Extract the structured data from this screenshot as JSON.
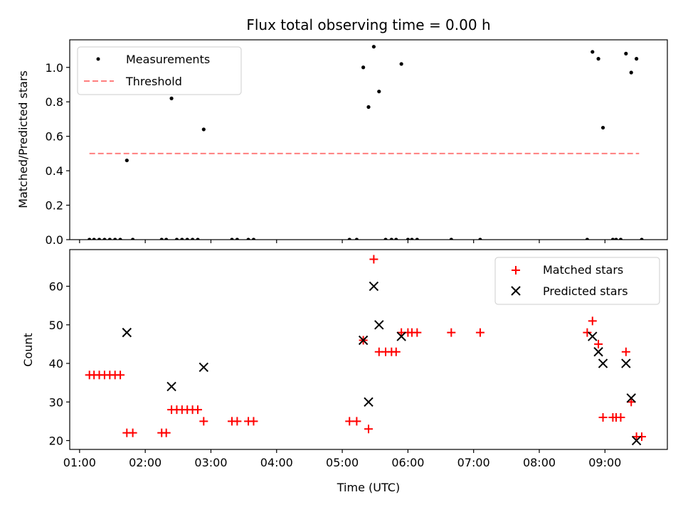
{
  "chart_data": [
    {
      "type": "scatter",
      "title": "Flux total observing time = 0.00 h",
      "xlabel": "",
      "ylabel": "Matched/Predicted stars",
      "xlim": [
        0.85,
        9.95
      ],
      "ylim": [
        0,
        1.16
      ],
      "yticks": [
        0.0,
        0.2,
        0.4,
        0.6,
        0.8,
        1.0
      ],
      "ytick_labels": [
        "0.0",
        "0.2",
        "0.4",
        "0.6",
        "0.8",
        "1.0"
      ],
      "xticks": [
        1,
        2,
        3,
        4,
        5,
        6,
        7,
        8,
        9
      ],
      "grid": false,
      "legend_position": "top-left",
      "series": [
        {
          "name": "Measurements",
          "marker": "dot",
          "color": "#000000",
          "x": [
            1.15,
            1.22,
            1.3,
            1.38,
            1.46,
            1.54,
            1.62,
            1.72,
            1.81,
            2.25,
            2.32,
            2.4,
            2.48,
            2.56,
            2.64,
            2.72,
            2.8,
            2.89,
            3.32,
            3.4,
            3.57,
            3.65,
            5.11,
            5.22,
            5.32,
            5.4,
            5.48,
            5.56,
            5.66,
            5.75,
            5.82,
            5.9,
            6.0,
            6.06,
            6.14,
            6.66,
            7.1,
            8.73,
            8.81,
            8.9,
            8.97,
            9.12,
            9.17,
            9.24,
            9.32,
            9.4,
            9.48,
            9.56
          ],
          "y": [
            0,
            0,
            0,
            0,
            0,
            0,
            0,
            0.46,
            0,
            0,
            0,
            0.82,
            0,
            0,
            0,
            0,
            0,
            0.64,
            0,
            0,
            0,
            0,
            0,
            0,
            1.0,
            0.77,
            1.12,
            0.86,
            0,
            0,
            0,
            1.02,
            0,
            0,
            0,
            0,
            0,
            0,
            1.09,
            1.05,
            0.65,
            0,
            0,
            0,
            1.08,
            0.97,
            1.05,
            0
          ]
        },
        {
          "name": "Threshold",
          "marker": "dashed-line",
          "color": "#ff7f7f",
          "x": [
            1.15,
            9.52
          ],
          "y": [
            0.5,
            0.5
          ]
        }
      ]
    },
    {
      "type": "scatter",
      "title": "",
      "xlabel": "Time (UTC)",
      "ylabel": "Count",
      "xlim": [
        0.85,
        9.95
      ],
      "ylim": [
        17.7,
        69.5
      ],
      "yticks": [
        20,
        30,
        40,
        50,
        60
      ],
      "ytick_labels": [
        "20",
        "30",
        "40",
        "50",
        "60"
      ],
      "xticks": [
        1,
        2,
        3,
        4,
        5,
        6,
        7,
        8,
        9
      ],
      "xtick_labels": [
        "01:00",
        "02:00",
        "03:00",
        "04:00",
        "05:00",
        "06:00",
        "07:00",
        "08:00",
        "09:00"
      ],
      "grid": false,
      "legend_position": "top-right",
      "series": [
        {
          "name": "Matched stars",
          "marker": "plus",
          "color": "#ff0000",
          "x": [
            1.15,
            1.22,
            1.3,
            1.38,
            1.46,
            1.54,
            1.62,
            1.72,
            1.81,
            2.25,
            2.32,
            2.4,
            2.48,
            2.56,
            2.64,
            2.72,
            2.8,
            2.89,
            3.32,
            3.4,
            3.57,
            3.65,
            5.11,
            5.22,
            5.32,
            5.4,
            5.48,
            5.56,
            5.66,
            5.75,
            5.82,
            5.9,
            6.0,
            6.06,
            6.14,
            6.66,
            7.1,
            8.73,
            8.81,
            8.9,
            8.97,
            9.12,
            9.17,
            9.24,
            9.32,
            9.4,
            9.48,
            9.56
          ],
          "y": [
            37,
            37,
            37,
            37,
            37,
            37,
            37,
            22,
            22,
            22,
            22,
            28,
            28,
            28,
            28,
            28,
            28,
            25,
            25,
            25,
            25,
            25,
            25,
            25,
            46,
            23,
            67,
            43,
            43,
            43,
            43,
            48,
            48,
            48,
            48,
            48,
            48,
            48,
            51,
            45,
            26,
            26,
            26,
            26,
            43,
            30,
            21,
            21
          ]
        },
        {
          "name": "Predicted stars",
          "marker": "x",
          "color": "#000000",
          "x": [
            1.72,
            2.4,
            2.89,
            5.32,
            5.4,
            5.48,
            5.56,
            5.9,
            8.81,
            8.9,
            8.97,
            9.32,
            9.4,
            9.48
          ],
          "y": [
            48,
            34,
            39,
            46,
            30,
            60,
            50,
            47,
            47,
            43,
            40,
            40,
            31,
            20
          ]
        }
      ]
    }
  ]
}
